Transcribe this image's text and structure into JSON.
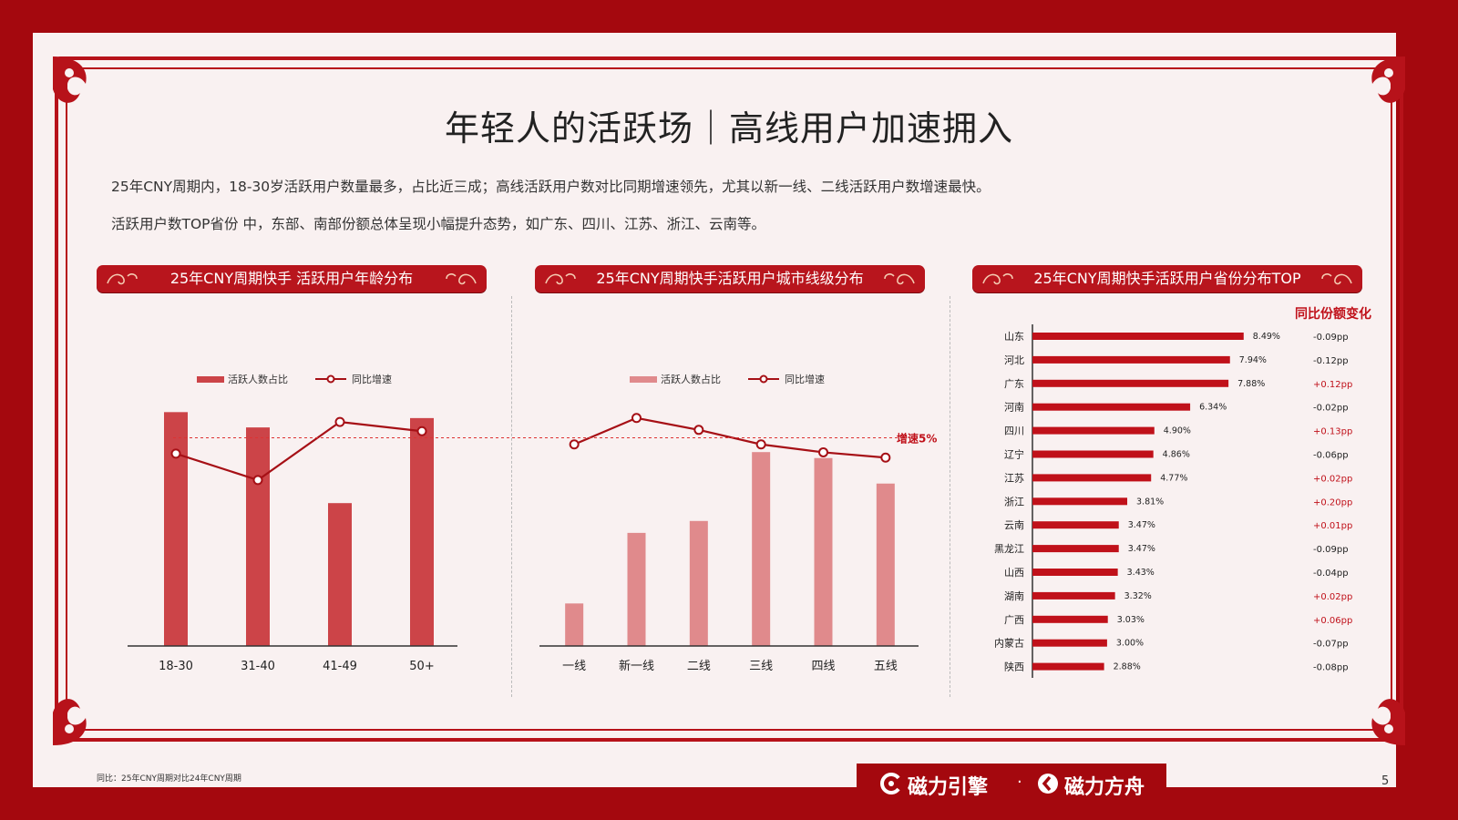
{
  "title": "年轻人的活跃场｜高线用户加速拥入",
  "description": [
    "25年CNY周期内，18-30岁活跃用户数量最多，占比近三成；高线活跃用户数对比同期增速领先，尤其以新一线、二线活跃用户数增速最快。",
    "活跃用户数TOP省份 中，东部、南部份额总体呈现小幅提升态势，如广东、四川、江苏、浙江、云南等。"
  ],
  "banners": {
    "age": "25年CNY周期快手 活跃用户年龄分布",
    "city": "25年CNY周期快手活跃用户城市线级分布",
    "province": "25年CNY周期快手活跃用户省份分布TOP"
  },
  "reference_label": "增速5%",
  "footnote": "同比：25年CNY周期对比24年CNY周期",
  "page_number": "5",
  "brands": [
    "磁力引擎",
    "磁力方舟"
  ],
  "brand_separator": "·",
  "colors": {
    "frame": "#a4080e",
    "bar_dark": "#cc4448",
    "bar_light": "#e08a8c",
    "line": "#a61016",
    "province_bar": "#c0111a",
    "positive_text": "#c0111a"
  },
  "chart_data": [
    {
      "type": "bar+line",
      "id": "age",
      "categories": [
        "18-30",
        "31-40",
        "41-49",
        "50+"
      ],
      "legend": [
        "活跃人数占比",
        "同比增速"
      ],
      "bar_values": [
        27.5,
        25.7,
        16.8,
        26.8
      ],
      "bar_ylim": [
        0,
        30
      ],
      "line_values": [
        3.8,
        1.8,
        6.2,
        5.5
      ],
      "line_ylim": [
        -10,
        10
      ],
      "reference_line": 5
    },
    {
      "type": "bar+line",
      "id": "city",
      "categories": [
        "一线",
        "新一线",
        "二线",
        "三线",
        "四线",
        "五线"
      ],
      "legend": [
        "活跃人数占比",
        "同比增速"
      ],
      "bar_values": [
        5,
        13.3,
        14.7,
        22.8,
        22.1,
        19.1
      ],
      "bar_ylim": [
        0,
        30
      ],
      "line_values": [
        4.5,
        6.5,
        5.6,
        4.5,
        3.9,
        3.5
      ],
      "line_ylim": [
        -10,
        10
      ],
      "reference_line": 5
    },
    {
      "type": "bar",
      "id": "province",
      "orientation": "horizontal",
      "extra_header": "同比份额变化",
      "categories": [
        "山东",
        "河北",
        "广东",
        "河南",
        "四川",
        "辽宁",
        "江苏",
        "浙江",
        "云南",
        "黑龙江",
        "山西",
        "湖南",
        "广西",
        "内蒙古",
        "陕西"
      ],
      "values": [
        8.49,
        7.94,
        7.88,
        6.34,
        4.9,
        4.86,
        4.77,
        3.81,
        3.47,
        3.47,
        3.43,
        3.32,
        3.03,
        3.0,
        2.88
      ],
      "value_labels": [
        "8.49%",
        "7.94%",
        "7.88%",
        "6.34%",
        "4.90%",
        "4.86%",
        "4.77%",
        "3.81%",
        "3.47%",
        "3.47%",
        "3.43%",
        "3.32%",
        "3.03%",
        "3.00%",
        "2.88%"
      ],
      "changes": [
        "-0.09pp",
        "-0.12pp",
        "+0.12pp",
        "-0.02pp",
        "+0.13pp",
        "-0.06pp",
        "+0.02pp",
        "+0.20pp",
        "+0.01pp",
        "-0.09pp",
        "-0.04pp",
        "+0.02pp",
        "+0.06pp",
        "-0.07pp",
        "-0.08pp"
      ],
      "xlim": [
        0,
        10
      ]
    }
  ]
}
